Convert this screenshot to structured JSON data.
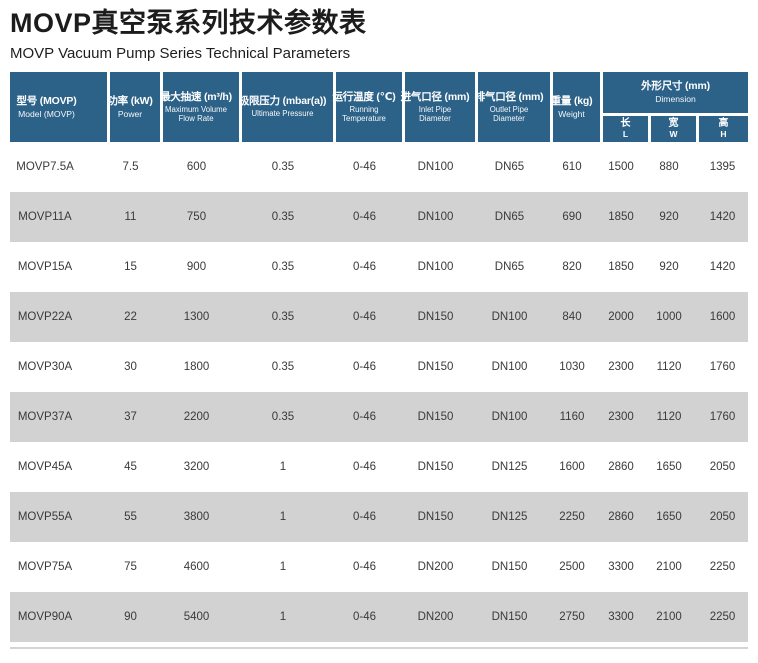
{
  "page": {
    "title": "MOVP真空泵系列技术参数表",
    "subtitle": "MOVP Vacuum Pump Series Technical Parameters"
  },
  "table": {
    "columns": [
      {
        "zh": "型号 (MOVP)",
        "en": "Model (MOVP)"
      },
      {
        "zh": "功率 (kW)",
        "en": "Power"
      },
      {
        "zh": "最大抽速 (m³/h)",
        "en": "Maximum Volume Flow Rate"
      },
      {
        "zh": "极限压力 (mbar(a))",
        "en": "Ultimate Pressure"
      },
      {
        "zh": "运行温度 (℃)",
        "en": "Running Temperature"
      },
      {
        "zh": "进气口径 (mm)",
        "en": "Inlet Pipe Diameter"
      },
      {
        "zh": "排气口径 (mm)",
        "en": "Outlet Pipe Diameter"
      },
      {
        "zh": "重量 (kg)",
        "en": "Weight"
      }
    ],
    "dimension_group": {
      "zh": "外形尺寸 (mm)",
      "en": "Dimension",
      "sub": [
        {
          "zh": "长",
          "en": "L"
        },
        {
          "zh": "宽",
          "en": "W"
        },
        {
          "zh": "高",
          "en": "H"
        }
      ]
    },
    "rows": [
      [
        "MOVP7.5A",
        "7.5",
        "600",
        "0.35",
        "0-46",
        "DN100",
        "DN65",
        "610",
        "1500",
        "880",
        "1395"
      ],
      [
        "MOVP11A",
        "11",
        "750",
        "0.35",
        "0-46",
        "DN100",
        "DN65",
        "690",
        "1850",
        "920",
        "1420"
      ],
      [
        "MOVP15A",
        "15",
        "900",
        "0.35",
        "0-46",
        "DN100",
        "DN65",
        "820",
        "1850",
        "920",
        "1420"
      ],
      [
        "MOVP22A",
        "22",
        "1300",
        "0.35",
        "0-46",
        "DN150",
        "DN100",
        "840",
        "2000",
        "1000",
        "1600"
      ],
      [
        "MOVP30A",
        "30",
        "1800",
        "0.35",
        "0-46",
        "DN150",
        "DN100",
        "1030",
        "2300",
        "1120",
        "1760"
      ],
      [
        "MOVP37A",
        "37",
        "2200",
        "0.35",
        "0-46",
        "DN150",
        "DN100",
        "1160",
        "2300",
        "1120",
        "1760"
      ],
      [
        "MOVP45A",
        "45",
        "3200",
        "1",
        "0-46",
        "DN150",
        "DN125",
        "1600",
        "2860",
        "1650",
        "2050"
      ],
      [
        "MOVP55A",
        "55",
        "3800",
        "1",
        "0-46",
        "DN150",
        "DN125",
        "2250",
        "2860",
        "1650",
        "2050"
      ],
      [
        "MOVP75A",
        "75",
        "4600",
        "1",
        "0-46",
        "DN200",
        "DN150",
        "2500",
        "3300",
        "2100",
        "2250"
      ],
      [
        "MOVP90A",
        "90",
        "5400",
        "1",
        "0-46",
        "DN200",
        "DN150",
        "2750",
        "3300",
        "2100",
        "2250"
      ]
    ],
    "colors": {
      "header_bg": "#2d6288",
      "row_alt_bg": "#d2d2d2",
      "data_text": "#3a3a3a"
    }
  }
}
